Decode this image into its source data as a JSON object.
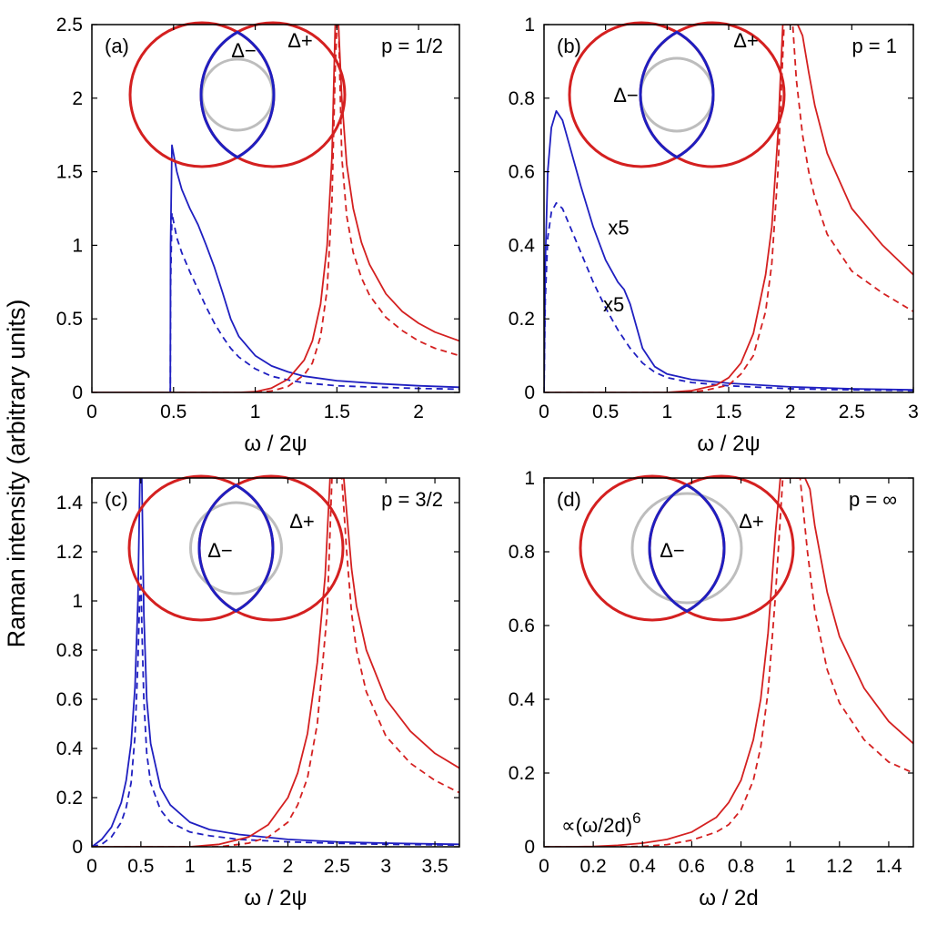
{
  "figure": {
    "ylabel": "Raman intensity (arbitrary units)"
  },
  "colors": {
    "red": "#d42020",
    "blue": "#1f1fc0",
    "gray": "#bdbdbd",
    "axis": "#000000"
  },
  "chart_data": [
    {
      "type": "line",
      "panel_label": "(a)",
      "parameter_label": "p = 1/2",
      "xlabel": "ω / 2ψ",
      "ylabel": "",
      "xlim": [
        0,
        2.25
      ],
      "ylim": [
        0,
        2.5
      ],
      "xticks": [
        0,
        0.5,
        1,
        1.5,
        2
      ],
      "xtick_labels": [
        "0",
        "0.5",
        "1",
        "1.5",
        "2"
      ],
      "yticks": [
        0,
        0.5,
        1,
        1.5,
        2,
        2.5
      ],
      "ytick_labels": [
        "0",
        "0.5",
        "1",
        "1.5",
        "2",
        "2.5"
      ],
      "inset": {
        "delta_minus": "Δ−",
        "delta_plus": "Δ+"
      },
      "annotations": [],
      "series": [
        {
          "color": "blue",
          "style": "solid",
          "x": [
            0,
            0.48,
            0.482,
            0.49,
            0.5,
            0.52,
            0.55,
            0.6,
            0.65,
            0.7,
            0.75,
            0.8,
            0.85,
            0.9,
            1.0,
            1.1,
            1.2,
            1.3,
            1.5,
            1.75,
            2.0,
            2.25
          ],
          "y": [
            0,
            0,
            1.0,
            1.68,
            1.62,
            1.5,
            1.38,
            1.25,
            1.14,
            1.0,
            0.85,
            0.68,
            0.5,
            0.38,
            0.25,
            0.18,
            0.14,
            0.11,
            0.08,
            0.06,
            0.045,
            0.035
          ]
        },
        {
          "color": "blue",
          "style": "dashed",
          "x": [
            0,
            0.48,
            0.482,
            0.49,
            0.5,
            0.52,
            0.55,
            0.6,
            0.65,
            0.7,
            0.75,
            0.8,
            0.85,
            0.9,
            1.0,
            1.1,
            1.2,
            1.3,
            1.5,
            1.75,
            2.0,
            2.25
          ],
          "y": [
            0,
            0,
            0.7,
            1.22,
            1.16,
            1.05,
            0.95,
            0.82,
            0.7,
            0.58,
            0.47,
            0.38,
            0.3,
            0.24,
            0.16,
            0.11,
            0.085,
            0.065,
            0.045,
            0.035,
            0.027,
            0.022
          ]
        },
        {
          "color": "red",
          "style": "solid",
          "x": [
            0,
            0.9,
            1.0,
            1.1,
            1.2,
            1.3,
            1.35,
            1.4,
            1.44,
            1.47,
            1.49,
            1.5,
            1.51,
            1.53,
            1.56,
            1.6,
            1.65,
            1.7,
            1.8,
            1.9,
            2.0,
            2.1,
            2.25
          ],
          "y": [
            0,
            0,
            0.005,
            0.03,
            0.09,
            0.22,
            0.35,
            0.6,
            1.0,
            1.6,
            2.5,
            2.5,
            2.5,
            2.0,
            1.55,
            1.25,
            1.02,
            0.87,
            0.67,
            0.55,
            0.47,
            0.41,
            0.35
          ]
        },
        {
          "color": "red",
          "style": "dashed",
          "x": [
            0,
            1.0,
            1.1,
            1.2,
            1.3,
            1.35,
            1.4,
            1.44,
            1.47,
            1.49,
            1.5,
            1.51,
            1.53,
            1.56,
            1.6,
            1.65,
            1.7,
            1.8,
            1.9,
            2.0,
            2.1,
            2.25
          ],
          "y": [
            0,
            0,
            0.01,
            0.04,
            0.12,
            0.2,
            0.38,
            0.7,
            1.3,
            2.2,
            2.5,
            2.5,
            1.6,
            1.2,
            0.95,
            0.78,
            0.66,
            0.51,
            0.42,
            0.35,
            0.3,
            0.25
          ]
        }
      ]
    },
    {
      "type": "line",
      "panel_label": "(b)",
      "parameter_label": "p = 1",
      "xlabel": "ω / 2ψ",
      "ylabel": "",
      "xlim": [
        0,
        3
      ],
      "ylim": [
        0,
        1
      ],
      "xticks": [
        0,
        0.5,
        1,
        1.5,
        2,
        2.5,
        3
      ],
      "xtick_labels": [
        "0",
        "0.5",
        "1",
        "1.5",
        "2",
        "2.5",
        "3"
      ],
      "yticks": [
        0,
        0.2,
        0.4,
        0.6,
        0.8,
        1
      ],
      "ytick_labels": [
        "0",
        "0.2",
        "0.4",
        "0.6",
        "0.8",
        "1"
      ],
      "inset": {
        "delta_minus": "Δ−",
        "delta_plus": "Δ+"
      },
      "annotations": [
        {
          "text": "x5",
          "x": 0.52,
          "y": 0.43
        },
        {
          "text": "x5",
          "x": 0.48,
          "y": 0.22
        }
      ],
      "series": [
        {
          "color": "blue",
          "style": "solid",
          "x": [
            0,
            0.01,
            0.03,
            0.06,
            0.1,
            0.15,
            0.2,
            0.3,
            0.4,
            0.5,
            0.6,
            0.65,
            0.7,
            0.75,
            0.8,
            0.9,
            1.0,
            1.2,
            1.5,
            2.0,
            2.5,
            3.0
          ],
          "y": [
            0,
            0.35,
            0.6,
            0.72,
            0.765,
            0.74,
            0.68,
            0.56,
            0.45,
            0.36,
            0.3,
            0.28,
            0.24,
            0.18,
            0.12,
            0.07,
            0.05,
            0.035,
            0.025,
            0.015,
            0.01,
            0.007
          ]
        },
        {
          "color": "blue",
          "style": "dashed",
          "x": [
            0,
            0.01,
            0.03,
            0.06,
            0.1,
            0.15,
            0.2,
            0.3,
            0.4,
            0.5,
            0.6,
            0.7,
            0.8,
            0.9,
            1.0,
            1.2,
            1.5,
            2.0,
            2.5,
            3.0
          ],
          "y": [
            0,
            0.25,
            0.42,
            0.49,
            0.515,
            0.5,
            0.46,
            0.38,
            0.3,
            0.23,
            0.17,
            0.12,
            0.08,
            0.055,
            0.04,
            0.027,
            0.018,
            0.01,
            0.007,
            0.005
          ]
        },
        {
          "color": "red",
          "style": "solid",
          "x": [
            0,
            1.0,
            1.2,
            1.4,
            1.5,
            1.6,
            1.7,
            1.8,
            1.85,
            1.9,
            1.94,
            1.97,
            2.0,
            2.03,
            2.06,
            2.1,
            2.15,
            2.2,
            2.3,
            2.5,
            2.75,
            3.0
          ],
          "y": [
            0,
            0,
            0.005,
            0.02,
            0.04,
            0.08,
            0.16,
            0.32,
            0.45,
            0.7,
            1.0,
            1.0,
            1.0,
            1.0,
            1.0,
            0.97,
            0.87,
            0.78,
            0.65,
            0.5,
            0.4,
            0.32
          ]
        },
        {
          "color": "red",
          "style": "dashed",
          "x": [
            0,
            1.1,
            1.3,
            1.5,
            1.6,
            1.7,
            1.8,
            1.85,
            1.9,
            1.95,
            1.98,
            2.0,
            2.02,
            2.05,
            2.1,
            2.15,
            2.2,
            2.3,
            2.5,
            2.75,
            3.0
          ],
          "y": [
            0,
            0,
            0.005,
            0.02,
            0.05,
            0.1,
            0.22,
            0.35,
            0.6,
            1.0,
            1.0,
            1.0,
            1.0,
            0.85,
            0.7,
            0.6,
            0.53,
            0.43,
            0.33,
            0.27,
            0.22
          ]
        }
      ]
    },
    {
      "type": "line",
      "panel_label": "(c)",
      "parameter_label": "p = 3/2",
      "xlabel": "ω / 2ψ",
      "ylabel": "",
      "xlim": [
        0,
        3.75
      ],
      "ylim": [
        0,
        1.5
      ],
      "xticks": [
        0,
        0.5,
        1,
        1.5,
        2,
        2.5,
        3,
        3.5
      ],
      "xtick_labels": [
        "0",
        "0.5",
        "1",
        "1.5",
        "2",
        "2.5",
        "3",
        "3.5"
      ],
      "yticks": [
        0,
        0.2,
        0.4,
        0.6,
        0.8,
        1,
        1.2,
        1.4
      ],
      "ytick_labels": [
        "0",
        "0.2",
        "0.4",
        "0.6",
        "0.8",
        "1",
        "1.2",
        "1.4"
      ],
      "inset": {
        "delta_minus": "Δ−",
        "delta_plus": "Δ+"
      },
      "annotations": [],
      "series": [
        {
          "color": "blue",
          "style": "solid",
          "x": [
            0,
            0.1,
            0.2,
            0.3,
            0.35,
            0.4,
            0.44,
            0.47,
            0.49,
            0.5,
            0.51,
            0.53,
            0.56,
            0.6,
            0.7,
            0.8,
            1.0,
            1.2,
            1.5,
            2.0,
            2.5,
            3.0,
            3.75
          ],
          "y": [
            0,
            0.03,
            0.08,
            0.18,
            0.27,
            0.42,
            0.65,
            1.0,
            1.5,
            1.5,
            1.5,
            0.95,
            0.6,
            0.42,
            0.24,
            0.17,
            0.1,
            0.07,
            0.05,
            0.03,
            0.02,
            0.015,
            0.01
          ]
        },
        {
          "color": "blue",
          "style": "dashed",
          "x": [
            0,
            0.1,
            0.2,
            0.3,
            0.35,
            0.4,
            0.44,
            0.47,
            0.49,
            0.5,
            0.51,
            0.53,
            0.56,
            0.6,
            0.7,
            0.8,
            1.0,
            1.2,
            1.5,
            2.0,
            2.5,
            3.0,
            3.75
          ],
          "y": [
            0,
            0.01,
            0.04,
            0.1,
            0.16,
            0.26,
            0.45,
            0.75,
            1.05,
            1.1,
            0.9,
            0.6,
            0.38,
            0.26,
            0.15,
            0.1,
            0.06,
            0.045,
            0.03,
            0.02,
            0.014,
            0.01,
            0.007
          ]
        },
        {
          "color": "red",
          "style": "solid",
          "x": [
            0,
            1.0,
            1.3,
            1.6,
            1.8,
            2.0,
            2.1,
            2.2,
            2.3,
            2.38,
            2.43,
            2.47,
            2.5,
            2.53,
            2.57,
            2.6,
            2.65,
            2.7,
            2.8,
            3.0,
            3.25,
            3.5,
            3.75
          ],
          "y": [
            0,
            0,
            0.01,
            0.04,
            0.09,
            0.2,
            0.3,
            0.46,
            0.75,
            1.1,
            1.5,
            1.5,
            1.5,
            1.5,
            1.5,
            1.36,
            1.13,
            0.98,
            0.8,
            0.6,
            0.47,
            0.38,
            0.32
          ]
        },
        {
          "color": "red",
          "style": "dashed",
          "x": [
            0,
            1.3,
            1.6,
            1.8,
            2.0,
            2.1,
            2.2,
            2.3,
            2.4,
            2.45,
            2.5,
            2.55,
            2.6,
            2.65,
            2.7,
            2.8,
            3.0,
            3.25,
            3.5,
            3.75
          ],
          "y": [
            0,
            0,
            0.015,
            0.04,
            0.1,
            0.17,
            0.28,
            0.5,
            0.95,
            1.5,
            1.5,
            1.5,
            1.2,
            0.95,
            0.8,
            0.63,
            0.45,
            0.34,
            0.27,
            0.22
          ]
        }
      ]
    },
    {
      "type": "line",
      "panel_label": "(d)",
      "parameter_label": "p = ∞",
      "xlabel": "ω / 2d",
      "ylabel": "",
      "xlim": [
        0,
        1.5
      ],
      "ylim": [
        0,
        1
      ],
      "xticks": [
        0,
        0.2,
        0.4,
        0.6,
        0.8,
        1,
        1.2,
        1.4
      ],
      "xtick_labels": [
        "0",
        "0.2",
        "0.4",
        "0.6",
        "0.8",
        "1",
        "1.2",
        "1.4"
      ],
      "yticks": [
        0,
        0.2,
        0.4,
        0.6,
        0.8,
        1
      ],
      "ytick_labels": [
        "0",
        "0.2",
        "0.4",
        "0.6",
        "0.8",
        "1"
      ],
      "inset": {
        "delta_minus": "Δ−",
        "delta_plus": "Δ+"
      },
      "annotations": [
        {
          "text": "∝(ω/2d)",
          "superscript": "6",
          "x": 0.07,
          "y": 0.04
        }
      ],
      "series": [
        {
          "color": "red",
          "style": "solid",
          "x": [
            0,
            0.1,
            0.2,
            0.3,
            0.4,
            0.5,
            0.6,
            0.7,
            0.75,
            0.8,
            0.85,
            0.88,
            0.91,
            0.94,
            0.96,
            0.98,
            1.0,
            1.02,
            1.04,
            1.06,
            1.08,
            1.1,
            1.15,
            1.2,
            1.3,
            1.4,
            1.5
          ],
          "y": [
            0,
            0,
            0.001,
            0.004,
            0.01,
            0.02,
            0.04,
            0.08,
            0.12,
            0.18,
            0.29,
            0.4,
            0.58,
            0.85,
            1.0,
            1.0,
            1.0,
            1.0,
            1.0,
            1.0,
            0.97,
            0.87,
            0.69,
            0.57,
            0.43,
            0.34,
            0.28
          ]
        },
        {
          "color": "red",
          "style": "dashed",
          "x": [
            0,
            0.3,
            0.4,
            0.5,
            0.6,
            0.7,
            0.75,
            0.8,
            0.85,
            0.88,
            0.91,
            0.94,
            0.97,
            1.0,
            1.02,
            1.04,
            1.07,
            1.1,
            1.15,
            1.2,
            1.3,
            1.4,
            1.5
          ],
          "y": [
            0,
            0,
            0.001,
            0.006,
            0.018,
            0.04,
            0.06,
            0.1,
            0.18,
            0.27,
            0.42,
            0.68,
            1.0,
            1.0,
            1.0,
            1.0,
            0.8,
            0.64,
            0.48,
            0.39,
            0.29,
            0.23,
            0.2
          ]
        }
      ]
    }
  ]
}
